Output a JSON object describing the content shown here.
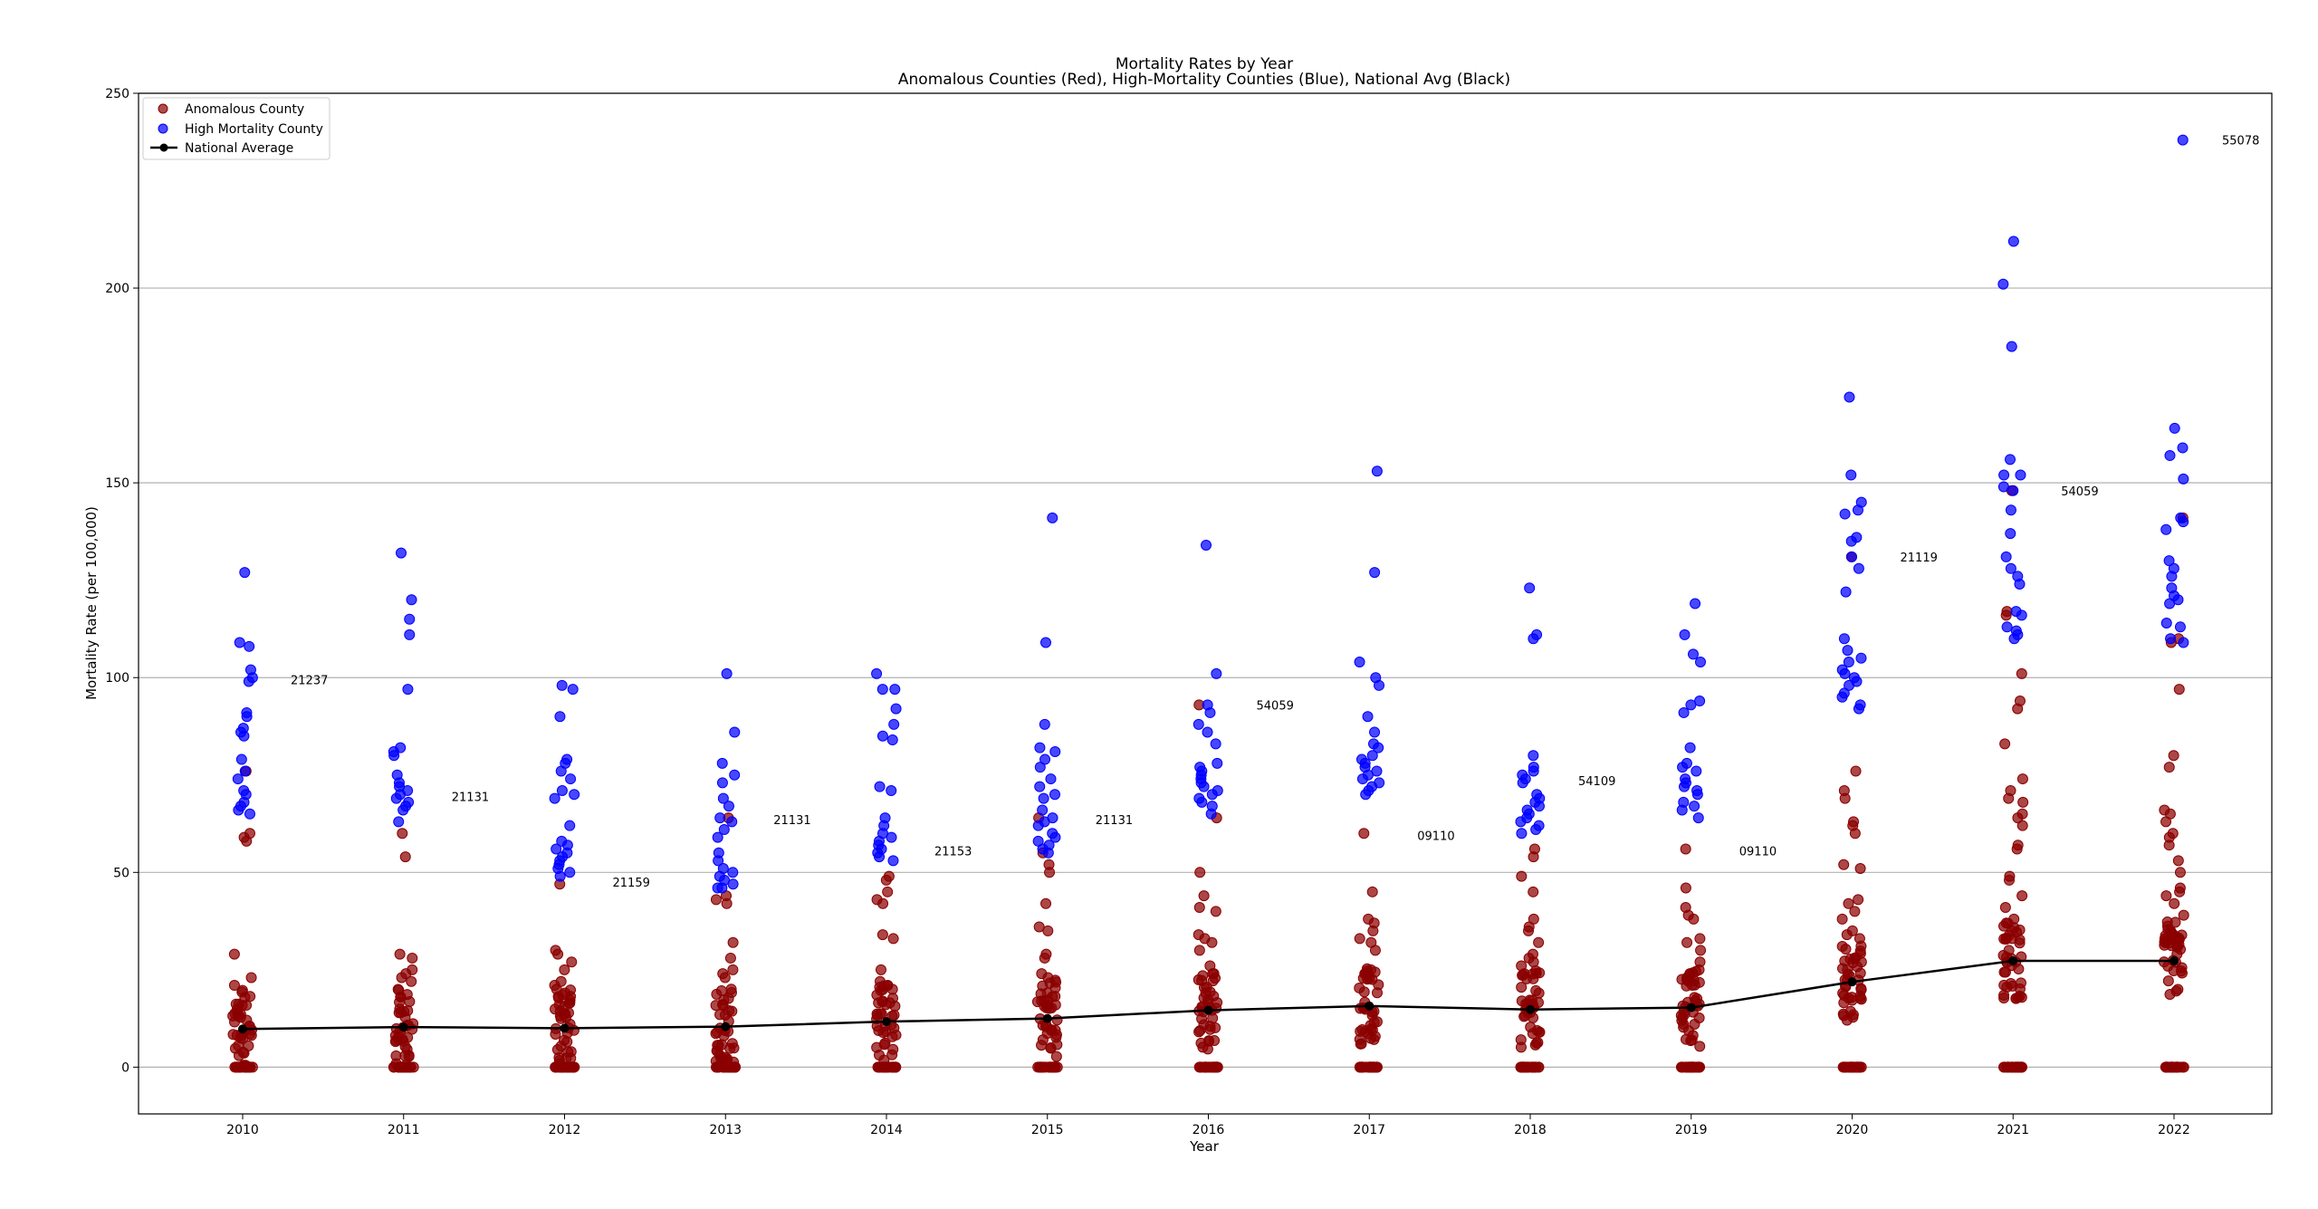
{
  "chart_data": {
    "type": "scatter",
    "title": "Mortality Rates by Year",
    "subtitle": "Anomalous Counties (Red), High-Mortality Counties (Blue), National Avg (Black)",
    "xlabel": "Year",
    "ylabel": "Mortality Rate (per 100,000)",
    "ylim": [
      -12,
      250
    ],
    "yticks": [
      0,
      50,
      100,
      150,
      200,
      250
    ],
    "ytick_labels": [
      "0",
      "50",
      "100",
      "150",
      "200",
      "250"
    ],
    "x_categories": [
      "2010",
      "2011",
      "2012",
      "2013",
      "2014",
      "2015",
      "2016",
      "2017",
      "2018",
      "2019",
      "2020",
      "2021",
      "2022"
    ],
    "grid": "horizontal",
    "legend_position": "upper-left",
    "legend": [
      {
        "label": "Anomalous County",
        "color": "#8b0000"
      },
      {
        "label": "High Mortality County",
        "color": "#0000ff"
      },
      {
        "label": "National Average",
        "color": "#000000"
      }
    ],
    "national_average": [
      9.8,
      10.3,
      10.0,
      10.4,
      11.7,
      12.5,
      14.6,
      15.7,
      14.8,
      15.3,
      21.9,
      27.3,
      27.3
    ],
    "high_mortality_by_year": [
      [
        127,
        109,
        108,
        102,
        100,
        99,
        91,
        90,
        87,
        86,
        85,
        79,
        76,
        74,
        71,
        70,
        68,
        67,
        66,
        65
      ],
      [
        132,
        120,
        115,
        111,
        97,
        82,
        81,
        80,
        75,
        73,
        72,
        71,
        70,
        69,
        68,
        67,
        66,
        63
      ],
      [
        98,
        97,
        90,
        79,
        78,
        76,
        74,
        71,
        70,
        69,
        62,
        58,
        57,
        56,
        55,
        54,
        53,
        52,
        51,
        50,
        49
      ],
      [
        101,
        86,
        78,
        75,
        73,
        69,
        67,
        64,
        63,
        61,
        59,
        55,
        53,
        51,
        50,
        49,
        48,
        47,
        46,
        46
      ],
      [
        101,
        97,
        97,
        92,
        88,
        85,
        84,
        72,
        71,
        64,
        62,
        60,
        59,
        58,
        57,
        56,
        55,
        54,
        53
      ],
      [
        141,
        109,
        88,
        82,
        81,
        79,
        77,
        74,
        72,
        70,
        69,
        66,
        64,
        63,
        62,
        60,
        59,
        58,
        57,
        56,
        55
      ],
      [
        134,
        101,
        93,
        91,
        88,
        86,
        83,
        78,
        77,
        76,
        75,
        74,
        73,
        72,
        71,
        70,
        69,
        68,
        67,
        65
      ],
      [
        153,
        127,
        104,
        100,
        98,
        90,
        86,
        83,
        82,
        80,
        79,
        78,
        77,
        76,
        75,
        74,
        73,
        72,
        71,
        70
      ],
      [
        123,
        111,
        110,
        80,
        77,
        76,
        75,
        74,
        73,
        70,
        69,
        68,
        67,
        66,
        65,
        64,
        63,
        62,
        61,
        60
      ],
      [
        119,
        111,
        106,
        104,
        94,
        93,
        91,
        82,
        78,
        77,
        76,
        74,
        73,
        72,
        71,
        70,
        68,
        67,
        66,
        64
      ],
      [
        172,
        152,
        145,
        143,
        142,
        136,
        135,
        131,
        128,
        122,
        110,
        107,
        105,
        104,
        102,
        101,
        100,
        99,
        98,
        96,
        95,
        93,
        92
      ],
      [
        212,
        201,
        185,
        156,
        152,
        152,
        149,
        148,
        143,
        137,
        131,
        128,
        126,
        124,
        117,
        116,
        113,
        112,
        111,
        110
      ],
      [
        238,
        164,
        159,
        157,
        151,
        141,
        140,
        138,
        130,
        128,
        126,
        123,
        121,
        120,
        119,
        114,
        113,
        110,
        109
      ]
    ],
    "anomalous_upper_by_year": [
      [
        76,
        60,
        59,
        58,
        29,
        23,
        21
      ],
      [
        60,
        54,
        29,
        28,
        25,
        24,
        23,
        22
      ],
      [
        47,
        30,
        29,
        27,
        25,
        22,
        21,
        20
      ],
      [
        64,
        44,
        43,
        42,
        32,
        28,
        25,
        24,
        23
      ],
      [
        49,
        48,
        45,
        43,
        42,
        34,
        33,
        25,
        22,
        21,
        20
      ],
      [
        64,
        55,
        52,
        50,
        42,
        36,
        35,
        29,
        28,
        24,
        23
      ],
      [
        93,
        64,
        50,
        44,
        41,
        40,
        34,
        33,
        32,
        30,
        26,
        24
      ],
      [
        60,
        45,
        38,
        37,
        35,
        33,
        32,
        30,
        25,
        24
      ],
      [
        56,
        54,
        49,
        45,
        38,
        36,
        35,
        32,
        29,
        28,
        27,
        26,
        24
      ],
      [
        56,
        46,
        41,
        39,
        38,
        33,
        32,
        30,
        27,
        25,
        24,
        23
      ],
      [
        131,
        76,
        71,
        69,
        63,
        62,
        60,
        52,
        51,
        43,
        42,
        40,
        38,
        35,
        34,
        33,
        31,
        28,
        27,
        25
      ],
      [
        148,
        117,
        116,
        101,
        94,
        92,
        83,
        74,
        71,
        69,
        68,
        65,
        64,
        62,
        57,
        56,
        49,
        48,
        44,
        41,
        38,
        37,
        35,
        33,
        30
      ],
      [
        141,
        110,
        109,
        97,
        80,
        77,
        66,
        65,
        63,
        60,
        59,
        57,
        53,
        50,
        46,
        45,
        44,
        42,
        39,
        35,
        34,
        33,
        31,
        29
      ]
    ],
    "annotations": [
      {
        "text": "21237",
        "year": "2010",
        "y": 99.5
      },
      {
        "text": "21131",
        "year": "2011",
        "y": 69.5
      },
      {
        "text": "21159",
        "year": "2012",
        "y": 47.5
      },
      {
        "text": "21131",
        "year": "2013",
        "y": 63.5
      },
      {
        "text": "21153",
        "year": "2014",
        "y": 55.5
      },
      {
        "text": "21131",
        "year": "2015",
        "y": 63.5
      },
      {
        "text": "54059",
        "year": "2016",
        "y": 93
      },
      {
        "text": "09110",
        "year": "2017",
        "y": 59.5
      },
      {
        "text": "54109",
        "year": "2018",
        "y": 73.5
      },
      {
        "text": "09110",
        "year": "2019",
        "y": 55.5
      },
      {
        "text": "21119",
        "year": "2020",
        "y": 131
      },
      {
        "text": "54059",
        "year": "2021",
        "y": 148
      },
      {
        "text": "55078",
        "year": "2022",
        "y": 238
      }
    ],
    "colors": {
      "anomalous": "#8b0000",
      "high_mortality": "#0000ff",
      "national_average": "#000000",
      "grid": "#b0b0b0"
    }
  }
}
